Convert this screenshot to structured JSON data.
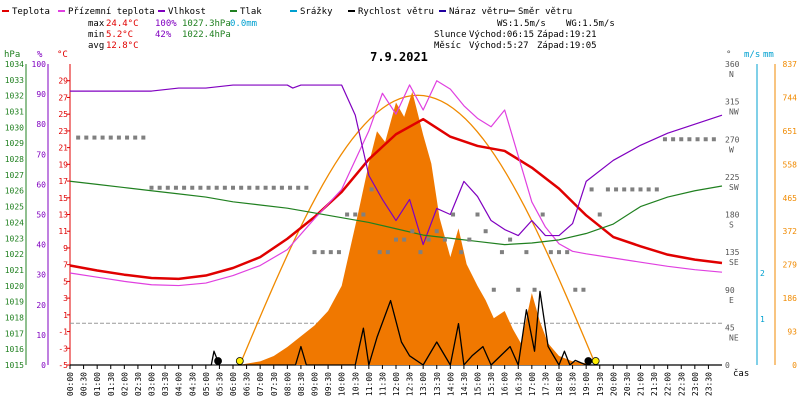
{
  "legend": [
    {
      "label": "Teplota",
      "color": "#e00000"
    },
    {
      "label": "Přízemní teplota",
      "color": "#e040e0"
    },
    {
      "label": "Vlhkost",
      "color": "#8000c0"
    },
    {
      "label": "Tlak",
      "color": "#208020"
    },
    {
      "label": "Srážky",
      "color": "#00a0d0"
    },
    {
      "label": "Rychlost větru",
      "color": "#000000"
    },
    {
      "label": "Náraz větru",
      "color": "#2000a0"
    },
    {
      "label": "Směr větru",
      "color": "#808080"
    }
  ],
  "stats": {
    "max_label": "max",
    "max_temp": "24.4°C",
    "max_hum": "100%",
    "max_press": "1027.3hPa",
    "max_rain": "0.0mm",
    "min_label": "min",
    "min_temp": "5.2°C",
    "min_hum": "42%",
    "min_press": "1022.4hPa",
    "avg_label": "avg",
    "avg_temp": "12.8°C"
  },
  "sun": {
    "ws": "WS:1.5m/s",
    "wg": "WG:1.5m/s",
    "slunce": "Slunce",
    "slunce_rise": "Východ:06:15",
    "slunce_set": "Západ:19:21",
    "mesic": "Měsíc",
    "mesic_rise": "Východ:5:27",
    "mesic_set": "Západ:19:05"
  },
  "date": "7.9.2021",
  "axes": {
    "units_left": [
      "hPa",
      "%",
      "°C"
    ],
    "units_right": [
      "°",
      "m/s",
      "mm"
    ],
    "xlabel": "čas",
    "press_ticks": [
      "1034",
      "1033",
      "1032",
      "1031",
      "1030",
      "1029",
      "1028",
      "1027",
      "1026",
      "1025",
      "1024",
      "1023",
      "1022",
      "1021",
      "1020",
      "1019",
      "1018",
      "1017",
      "1016",
      "1015"
    ],
    "hum_ticks": [
      "100",
      "90",
      "80",
      "70",
      "60",
      "50",
      "40",
      "30",
      "20",
      "10",
      "0"
    ],
    "temp_ticks": [
      "29",
      "27",
      "25",
      "23",
      "21",
      "19",
      "17",
      "15",
      "13",
      "11",
      "9",
      "7",
      "5",
      "3",
      "1",
      "-1",
      "-3",
      "-5"
    ],
    "dir_ticks": [
      {
        "deg": "360",
        "name": "N"
      },
      {
        "deg": "315",
        "name": "NW"
      },
      {
        "deg": "270",
        "name": "W"
      },
      {
        "deg": "225",
        "name": "SW"
      },
      {
        "deg": "180",
        "name": "S"
      },
      {
        "deg": "135",
        "name": "SE"
      },
      {
        "deg": "90",
        "name": "E"
      },
      {
        "deg": "45",
        "name": "NE"
      },
      {
        "deg": "0",
        "name": ""
      }
    ],
    "wind_ticks": [
      "1",
      "2"
    ],
    "rad_ticks": [
      "837",
      "744",
      "651",
      "558",
      "465",
      "372",
      "279",
      "186",
      "93",
      "0"
    ],
    "time_ticks": [
      "00:00",
      "00:30",
      "01:00",
      "01:30",
      "02:00",
      "02:30",
      "03:00",
      "03:30",
      "04:00",
      "04:30",
      "05:00",
      "05:30",
      "06:00",
      "06:30",
      "07:00",
      "07:30",
      "08:00",
      "08:30",
      "09:00",
      "09:30",
      "10:00",
      "10:30",
      "11:00",
      "11:30",
      "12:00",
      "12:30",
      "13:00",
      "13:30",
      "14:00",
      "14:30",
      "15:00",
      "15:30",
      "16:00",
      "16:30",
      "17:00",
      "17:30",
      "18:00",
      "18:30",
      "19:00",
      "19:30",
      "20:00",
      "20:30",
      "21:00",
      "21:30",
      "22:00",
      "22:30",
      "23:00",
      "23:30"
    ]
  },
  "chart_data": {
    "type": "line",
    "title": "7.9.2021",
    "xlabel": "čas",
    "xlim": [
      0,
      24
    ],
    "temp_ylim": [
      -5,
      31
    ],
    "hum_ylim": [
      0,
      100
    ],
    "press_ylim": [
      1015,
      1034
    ],
    "dir_ylim": [
      0,
      360
    ],
    "rad_ylim": [
      0,
      837
    ],
    "series": [
      {
        "name": "Teplota",
        "axis": "temp",
        "color": "#e00000",
        "x": [
          0,
          1,
          2,
          3,
          4,
          5,
          6,
          7,
          8,
          9,
          10,
          11,
          12,
          13,
          14,
          15,
          16,
          17,
          18,
          19,
          20,
          21,
          22,
          23,
          24
        ],
        "y": [
          6.9,
          6.3,
          5.8,
          5.4,
          5.3,
          5.7,
          6.6,
          7.9,
          10.1,
          12.7,
          15.7,
          19.6,
          22.6,
          24.4,
          22.3,
          21.2,
          20.6,
          18.6,
          16.1,
          12.9,
          10.3,
          9.2,
          8.2,
          7.6,
          7.2
        ]
      },
      {
        "name": "Přízemní teplota",
        "axis": "temp",
        "color": "#e040e0",
        "x": [
          0,
          1,
          2,
          3,
          4,
          5,
          6,
          7,
          8,
          9,
          10,
          11,
          11.5,
          12,
          12.5,
          13,
          13.5,
          14,
          14.5,
          15,
          15.5,
          16,
          16.5,
          17,
          17.5,
          18,
          18.5,
          19,
          20,
          21,
          22,
          23,
          24
        ],
        "y": [
          6.0,
          5.5,
          5.0,
          4.6,
          4.5,
          4.8,
          5.7,
          6.9,
          8.8,
          12.5,
          16.0,
          23.0,
          27.5,
          25.0,
          28.5,
          25.5,
          29.0,
          28.0,
          26.0,
          24.5,
          23.5,
          25.5,
          20.0,
          14.5,
          11.5,
          9.5,
          8.6,
          8.3,
          7.8,
          7.3,
          6.8,
          6.4,
          6.1
        ]
      },
      {
        "name": "Vlhkost",
        "axis": "hum",
        "color": "#8000c0",
        "x": [
          0,
          1,
          2,
          3,
          4,
          5,
          6,
          7,
          8,
          8.2,
          8.5,
          9,
          10,
          10.5,
          11,
          11.5,
          12,
          12.5,
          13,
          13.5,
          14,
          14.5,
          15,
          15.5,
          16,
          16.5,
          17,
          17.5,
          18,
          18.5,
          19,
          20,
          21,
          22,
          23,
          24
        ],
        "y": [
          91,
          91,
          91,
          91,
          92,
          92,
          93,
          93,
          93,
          92,
          93,
          93,
          93,
          83,
          63,
          55,
          48,
          55,
          40,
          52,
          50,
          61,
          56,
          48,
          45,
          43,
          48,
          43,
          43,
          47,
          61,
          68,
          73,
          77,
          80,
          83
        ]
      },
      {
        "name": "Tlak",
        "axis": "press",
        "color": "#208020",
        "x": [
          0,
          1,
          2,
          3,
          4,
          5,
          6,
          7,
          8,
          9,
          10,
          11,
          12,
          13,
          14,
          15,
          16,
          17,
          18,
          19,
          20,
          21,
          22,
          23,
          24
        ],
        "y": [
          1026.6,
          1026.4,
          1026.2,
          1026.0,
          1025.8,
          1025.6,
          1025.3,
          1025.1,
          1024.9,
          1024.6,
          1024.3,
          1024.0,
          1023.6,
          1023.2,
          1023.0,
          1022.8,
          1022.6,
          1022.7,
          1022.9,
          1023.3,
          1023.9,
          1025.0,
          1025.6,
          1026.0,
          1026.3
        ]
      },
      {
        "name": "Rychlost větru",
        "axis": "wind",
        "color": "#000000",
        "x": [
          0,
          5.2,
          5.3,
          5.5,
          8.3,
          8.5,
          8.7,
          9.5,
          10.5,
          10.8,
          11,
          11.3,
          11.8,
          12.2,
          12.5,
          13,
          13.5,
          14,
          14.3,
          14.5,
          14.8,
          15.2,
          15.5,
          16.2,
          16.5,
          16.8,
          17.1,
          17.3,
          17.6,
          18,
          18.2,
          18.4,
          18.6,
          19,
          24
        ],
        "y": [
          0,
          0,
          0.3,
          0,
          0,
          0.4,
          0,
          0,
          0,
          0.8,
          0,
          0.6,
          1.4,
          0.5,
          0.2,
          0,
          0.5,
          0,
          0.9,
          0,
          0.2,
          0.4,
          0,
          0.4,
          0,
          1.2,
          0.3,
          1.6,
          0.4,
          0,
          0.3,
          0,
          0.1,
          0,
          0
        ]
      },
      {
        "name": "Směr větru",
        "axis": "dir",
        "color": "#808080",
        "style": "points",
        "x": [
          0.3,
          0.6,
          0.9,
          1.2,
          1.5,
          1.8,
          2.1,
          2.4,
          2.7,
          3.0,
          3.3,
          3.6,
          3.9,
          4.2,
          4.5,
          4.8,
          5.1,
          5.4,
          5.7,
          6.0,
          6.3,
          6.6,
          6.9,
          7.2,
          7.5,
          7.8,
          8.1,
          8.4,
          8.7,
          9.0,
          9.3,
          9.6,
          9.9,
          10.2,
          10.5,
          10.8,
          11.1,
          11.4,
          11.7,
          12.0,
          12.3,
          12.6,
          12.9,
          13.2,
          13.5,
          13.8,
          14.1,
          14.4,
          14.7,
          15.0,
          15.3,
          15.6,
          15.9,
          16.2,
          16.5,
          16.8,
          17.1,
          17.4,
          17.7,
          18.0,
          18.3,
          18.6,
          18.9,
          19.2,
          19.5,
          19.8,
          20.1,
          20.4,
          20.7,
          21.0,
          21.3,
          21.6,
          21.9,
          22.2,
          22.5,
          22.8,
          23.1,
          23.4,
          23.7
        ],
        "y": [
          272,
          272,
          272,
          272,
          272,
          272,
          272,
          272,
          272,
          212,
          212,
          212,
          212,
          212,
          212,
          212,
          212,
          212,
          212,
          212,
          212,
          212,
          212,
          212,
          212,
          212,
          212,
          212,
          212,
          135,
          135,
          135,
          135,
          180,
          180,
          180,
          210,
          135,
          135,
          150,
          150,
          160,
          135,
          150,
          160,
          150,
          180,
          135,
          150,
          180,
          160,
          90,
          135,
          150,
          90,
          135,
          90,
          180,
          135,
          135,
          135,
          90,
          90,
          210,
          180,
          210,
          210,
          210,
          210,
          210,
          210,
          210,
          270,
          270,
          270,
          270,
          270,
          270,
          270
        ]
      }
    ],
    "radiation": {
      "name": "Solar radiation",
      "axis": "rad",
      "color": "#f07800",
      "x": [
        0,
        6.2,
        7,
        7.5,
        8,
        8.5,
        9,
        9.5,
        10,
        10.3,
        10.6,
        11,
        11.3,
        11.6,
        12,
        12.3,
        12.6,
        13,
        13.3,
        13.6,
        14,
        14.3,
        14.6,
        15,
        15.3,
        15.6,
        16,
        16.3,
        16.6,
        17,
        17.3,
        17.6,
        18,
        18.5,
        19,
        19.3,
        24
      ],
      "y": [
        0,
        0,
        10,
        25,
        50,
        80,
        110,
        150,
        220,
        320,
        420,
        560,
        650,
        620,
        730,
        690,
        760,
        640,
        560,
        410,
        300,
        380,
        280,
        220,
        180,
        130,
        150,
        100,
        60,
        200,
        120,
        60,
        25,
        10,
        5,
        0,
        0
      ]
    },
    "sun_curve": {
      "name": "Theoretical radiation",
      "color": "#f08a00",
      "peak": 750,
      "x": [
        6.25,
        12.8,
        19.35
      ]
    }
  }
}
